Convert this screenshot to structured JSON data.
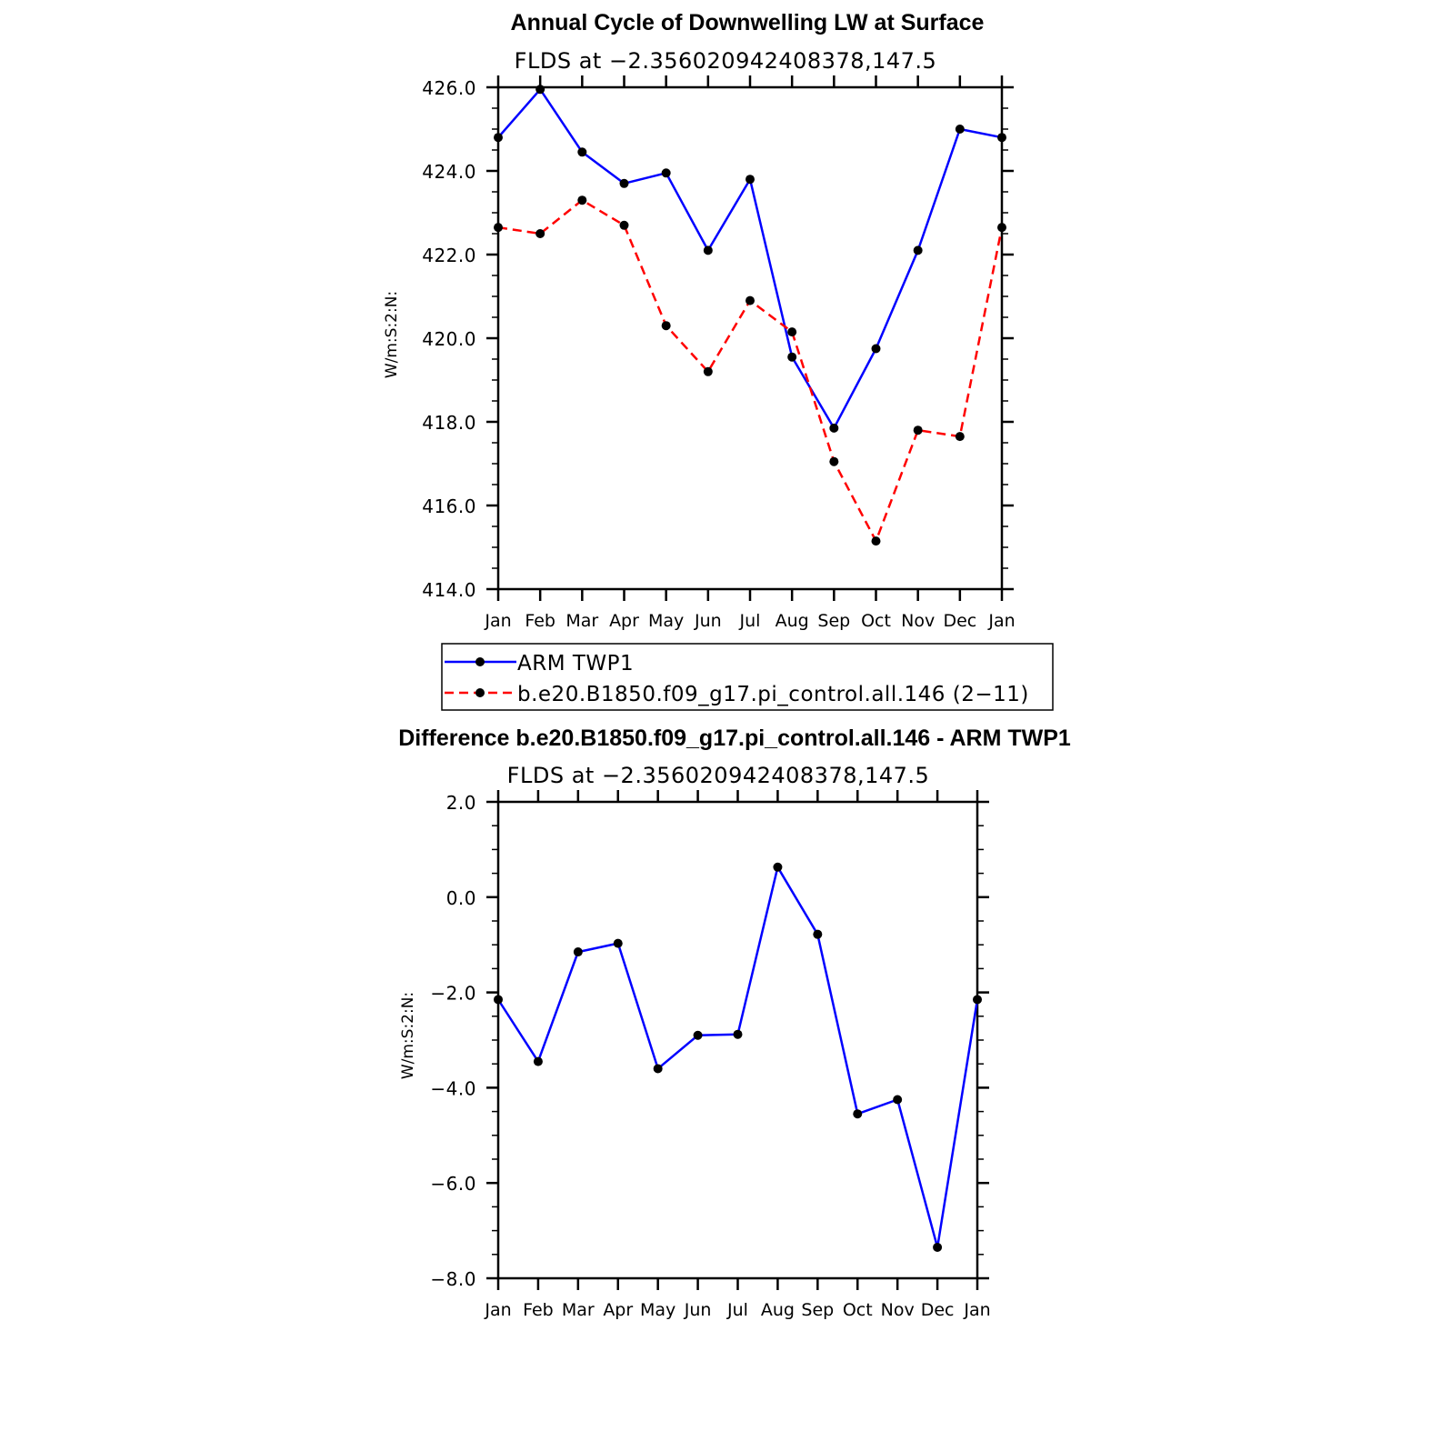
{
  "colors": {
    "series_1": "#0000ff",
    "series_2": "#ff0000",
    "marker": "#000000",
    "axes": "#000000"
  },
  "legend": {
    "placement": "below-top-chart",
    "items": [
      {
        "label": "ARM  TWP1",
        "style": "solid"
      },
      {
        "label": "b.e20.B1850.f09_g17.pi_control.all.146  (2−11)",
        "style": "dashed"
      }
    ]
  },
  "chart_data": [
    {
      "type": "line",
      "title": "Annual Cycle of Downwelling LW at Surface",
      "subtitle": "FLDS  at  −2.356020942408378,147.5",
      "xlabel": "",
      "ylabel": "W/m:S:2:N:",
      "categories": [
        "Jan",
        "Feb",
        "Mar",
        "Apr",
        "May",
        "Jun",
        "Jul",
        "Aug",
        "Sep",
        "Oct",
        "Nov",
        "Dec",
        "Jan"
      ],
      "ylim": [
        414,
        426
      ],
      "yticks": [
        414,
        416,
        418,
        420,
        422,
        424,
        426
      ],
      "ytick_labels": [
        "414.0",
        "416.0",
        "418.0",
        "420.0",
        "422.0",
        "424.0",
        "426.0"
      ],
      "grid": false,
      "series": [
        {
          "name": "ARM  TWP1",
          "style": "solid",
          "values": [
            424.8,
            425.95,
            424.45,
            423.7,
            423.95,
            422.1,
            423.8,
            419.55,
            417.85,
            419.75,
            422.1,
            425.0,
            424.8
          ]
        },
        {
          "name": "b.e20.B1850.f09_g17.pi_control.all.146  (2−11)",
          "style": "dashed",
          "values": [
            422.65,
            422.5,
            423.3,
            422.7,
            420.3,
            419.2,
            420.9,
            420.15,
            417.05,
            415.15,
            417.8,
            417.65,
            422.65
          ]
        }
      ]
    },
    {
      "type": "line",
      "title": "Difference b.e20.B1850.f09_g17.pi_control.all.146 - ARM TWP1",
      "subtitle": "FLDS  at  −2.356020942408378,147.5",
      "xlabel": "",
      "ylabel": "W/m:S:2:N:",
      "categories": [
        "Jan",
        "Feb",
        "Mar",
        "Apr",
        "May",
        "Jun",
        "Jul",
        "Aug",
        "Sep",
        "Oct",
        "Nov",
        "Dec",
        "Jan"
      ],
      "ylim": [
        -8,
        2
      ],
      "yticks": [
        -8,
        -6,
        -4,
        -2,
        0,
        2
      ],
      "ytick_labels": [
        "−8.0",
        "−6.0",
        "−4.0",
        "−2.0",
        "0.0",
        "2.0"
      ],
      "grid": false,
      "series": [
        {
          "style": "solid",
          "values": [
            -2.15,
            -3.45,
            -1.15,
            -0.97,
            -3.6,
            -2.9,
            -2.88,
            0.63,
            -0.78,
            -4.55,
            -4.25,
            -7.35,
            -2.15
          ]
        }
      ]
    }
  ]
}
